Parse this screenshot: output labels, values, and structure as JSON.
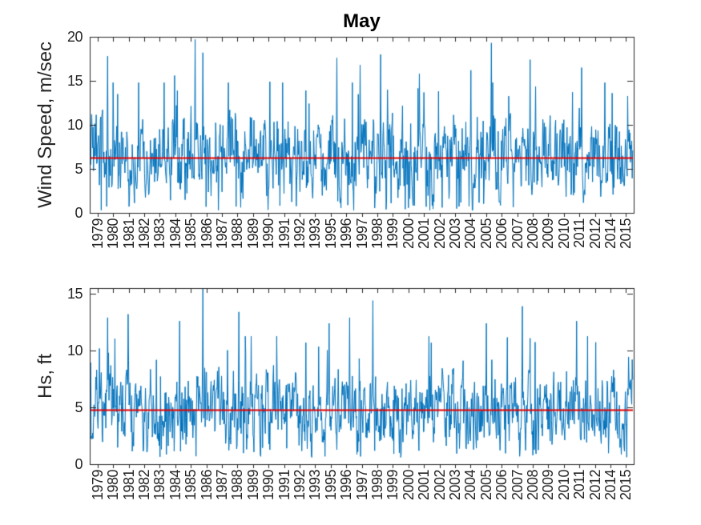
{
  "colors": {
    "series_blue": "#0072BD",
    "mean_line_red": "#E10000",
    "axis": "#262626",
    "tick_label": "#262626",
    "title_text": "#000000",
    "background": "#FFFFFF"
  },
  "chart_data": [
    {
      "type": "line",
      "name": "wind-speed-timeseries",
      "title": "May",
      "xlabel": "",
      "ylabel": "Wind Speed, m/sec",
      "x_categories": [
        "1979",
        "1980",
        "1981",
        "1982",
        "1983",
        "1984",
        "1985",
        "1986",
        "1987",
        "1988",
        "1989",
        "1990",
        "1991",
        "1992",
        "1993",
        "1995",
        "1996",
        "1997",
        "1998",
        "1999",
        "2000",
        "2001",
        "2002",
        "2003",
        "2004",
        "2005",
        "2006",
        "2007",
        "2008",
        "2009",
        "2010",
        "2011",
        "2012",
        "2014",
        "2015"
      ],
      "ylim": [
        0,
        20
      ],
      "yticks": [
        0,
        5,
        10,
        15,
        20
      ],
      "grid": false,
      "legend": "none",
      "mean_line": {
        "value": 6.3,
        "color": "#E10000"
      },
      "series": [
        {
          "name": "wind-speed-m-sec",
          "color": "#0072BD",
          "style": "dense-noisy-line",
          "points_per_year": 34,
          "mean": 6.3,
          "std": 2.5,
          "min": 0.3,
          "max": 19.7,
          "peaks": [
            {
              "year": "1980",
              "value": 17.8
            },
            {
              "year": "1984",
              "value": 15.6
            },
            {
              "year": "1985",
              "value": 19.7
            },
            {
              "year": "1986",
              "value": 18.2
            },
            {
              "year": "1990",
              "value": 14.9
            },
            {
              "year": "1995",
              "value": 17.6
            },
            {
              "year": "1997",
              "value": 16.8
            },
            {
              "year": "1998",
              "value": 18.0
            },
            {
              "year": "2001",
              "value": 15.8
            },
            {
              "year": "2004",
              "value": 16.2
            },
            {
              "year": "2005",
              "value": 19.3
            },
            {
              "year": "2008",
              "value": 17.4
            },
            {
              "year": "2011",
              "value": 16.5
            },
            {
              "year": "2014",
              "value": 14.8
            }
          ]
        }
      ]
    },
    {
      "type": "line",
      "name": "hs-timeseries",
      "title": "",
      "xlabel": "",
      "ylabel": "Hs, ft",
      "x_categories": [
        "1979",
        "1980",
        "1981",
        "1982",
        "1983",
        "1984",
        "1985",
        "1986",
        "1987",
        "1988",
        "1989",
        "1990",
        "1991",
        "1992",
        "1993",
        "1995",
        "1996",
        "1997",
        "1998",
        "1999",
        "2000",
        "2001",
        "2002",
        "2003",
        "2004",
        "2005",
        "2006",
        "2007",
        "2008",
        "2009",
        "2010",
        "2011",
        "2012",
        "2014",
        "2015"
      ],
      "ylim": [
        0,
        15.5
      ],
      "yticks": [
        0,
        5,
        10,
        15
      ],
      "grid": false,
      "legend": "none",
      "mean_line": {
        "value": 4.8,
        "color": "#E10000"
      },
      "series": [
        {
          "name": "hs-ft",
          "color": "#0072BD",
          "style": "dense-noisy-line",
          "points_per_year": 34,
          "mean": 4.8,
          "std": 1.9,
          "min": 0.6,
          "max": 15.5,
          "peaks": [
            {
              "year": "1980",
              "value": 12.9
            },
            {
              "year": "1981",
              "value": 13.2
            },
            {
              "year": "1984",
              "value": 12.6
            },
            {
              "year": "1986",
              "value": 15.5
            },
            {
              "year": "1988",
              "value": 13.4
            },
            {
              "year": "1992",
              "value": 10.7
            },
            {
              "year": "1995",
              "value": 12.4
            },
            {
              "year": "1996",
              "value": 12.9
            },
            {
              "year": "1998",
              "value": 14.4
            },
            {
              "year": "2005",
              "value": 12.4
            },
            {
              "year": "2007",
              "value": 13.9
            },
            {
              "year": "2011",
              "value": 12.6
            }
          ]
        }
      ]
    }
  ]
}
